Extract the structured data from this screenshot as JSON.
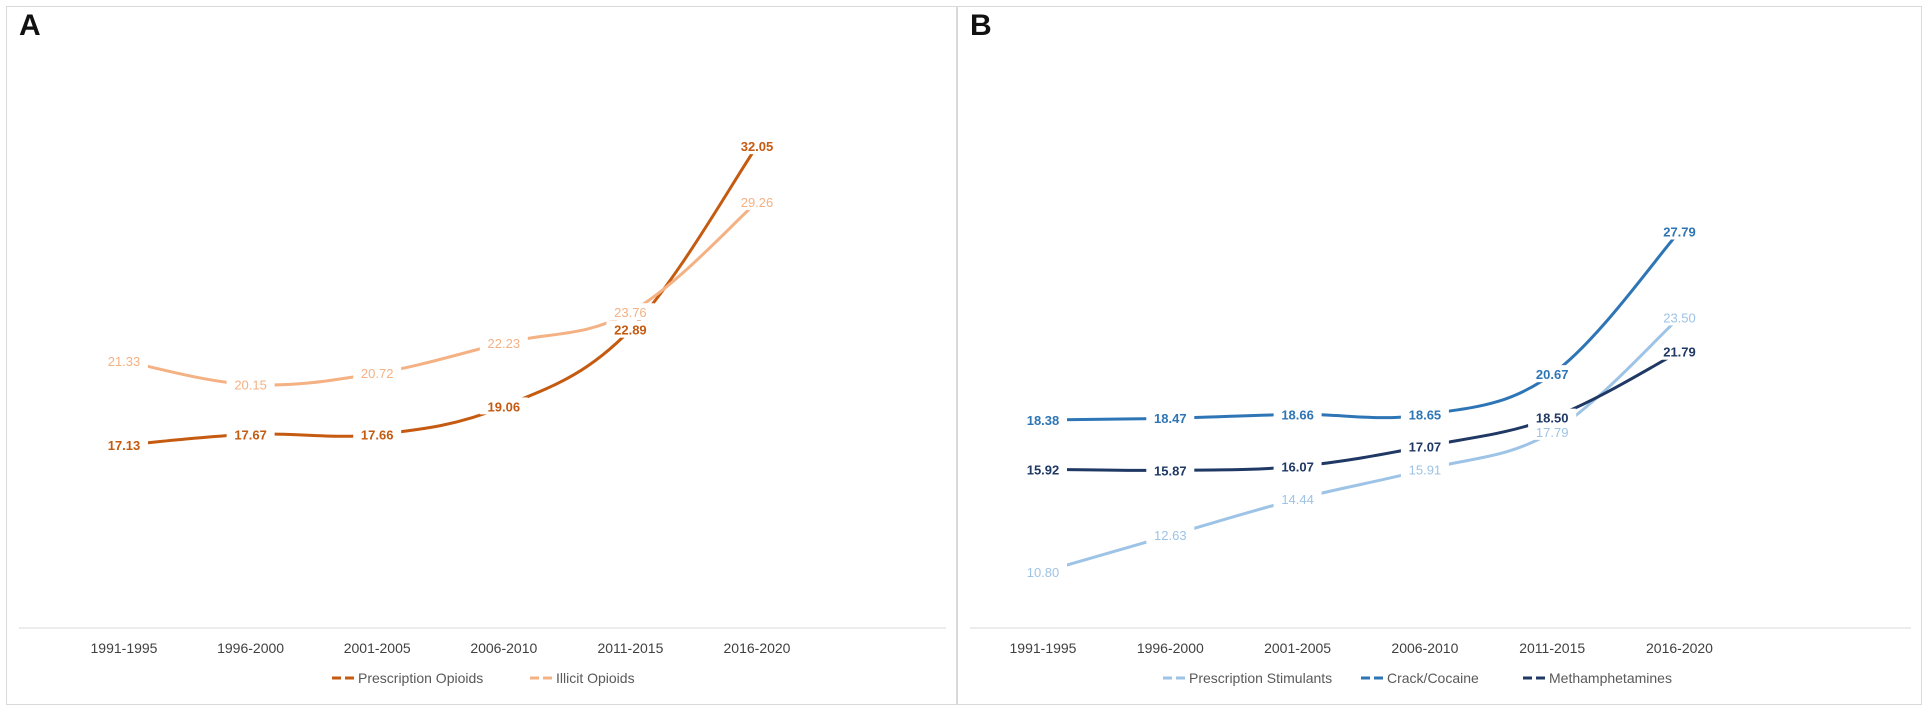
{
  "chart_data": [
    {
      "panel": "A",
      "type": "line",
      "categories": [
        "1991-1995",
        "1996-2000",
        "2001-2005",
        "2006-2010",
        "2011-2015",
        "2016-2020"
      ],
      "ylim": [
        8,
        36
      ],
      "series": [
        {
          "name": "Prescription Opioids",
          "color": "#c55a11",
          "values": [
            17.13,
            17.67,
            17.66,
            19.06,
            22.89,
            32.05
          ],
          "label_text": [
            "17.13",
            "17.67",
            "17.66",
            "19.06",
            "22.89",
            "32.05"
          ]
        },
        {
          "name": "Illicit Opioids",
          "color": "#f4b183",
          "values": [
            21.33,
            20.15,
            20.72,
            22.23,
            23.76,
            29.26
          ],
          "label_text": [
            "21.33",
            "20.15",
            "20.72",
            "22.23",
            "23.76",
            "29.26"
          ]
        }
      ],
      "legend_position": "bottom"
    },
    {
      "panel": "B",
      "type": "line",
      "categories": [
        "1991-1995",
        "1996-2000",
        "2001-2005",
        "2006-2010",
        "2011-2015",
        "2016-2020"
      ],
      "ylim": [
        8,
        36
      ],
      "series": [
        {
          "name": "Prescription Stimulants",
          "color": "#9dc3e6",
          "values": [
            10.8,
            12.63,
            14.44,
            15.91,
            17.79,
            23.5
          ],
          "label_text": [
            "10.80",
            "12.63",
            "14.44",
            "15.91",
            "17.79",
            "23.50"
          ]
        },
        {
          "name": "Crack/Cocaine",
          "color": "#2e75b6",
          "values": [
            18.38,
            18.47,
            18.66,
            18.65,
            20.67,
            27.79
          ],
          "label_text": [
            "18.38",
            "18.47",
            "18.66",
            "18.65",
            "20.67",
            "27.79"
          ]
        },
        {
          "name": "Methamphetamines",
          "color": "#1f3864",
          "values": [
            15.92,
            15.87,
            16.07,
            17.07,
            18.5,
            21.79
          ],
          "label_text": [
            "15.92",
            "15.87",
            "16.07",
            "17.07",
            "18.50",
            "21.79"
          ]
        }
      ],
      "legend_position": "bottom"
    }
  ]
}
